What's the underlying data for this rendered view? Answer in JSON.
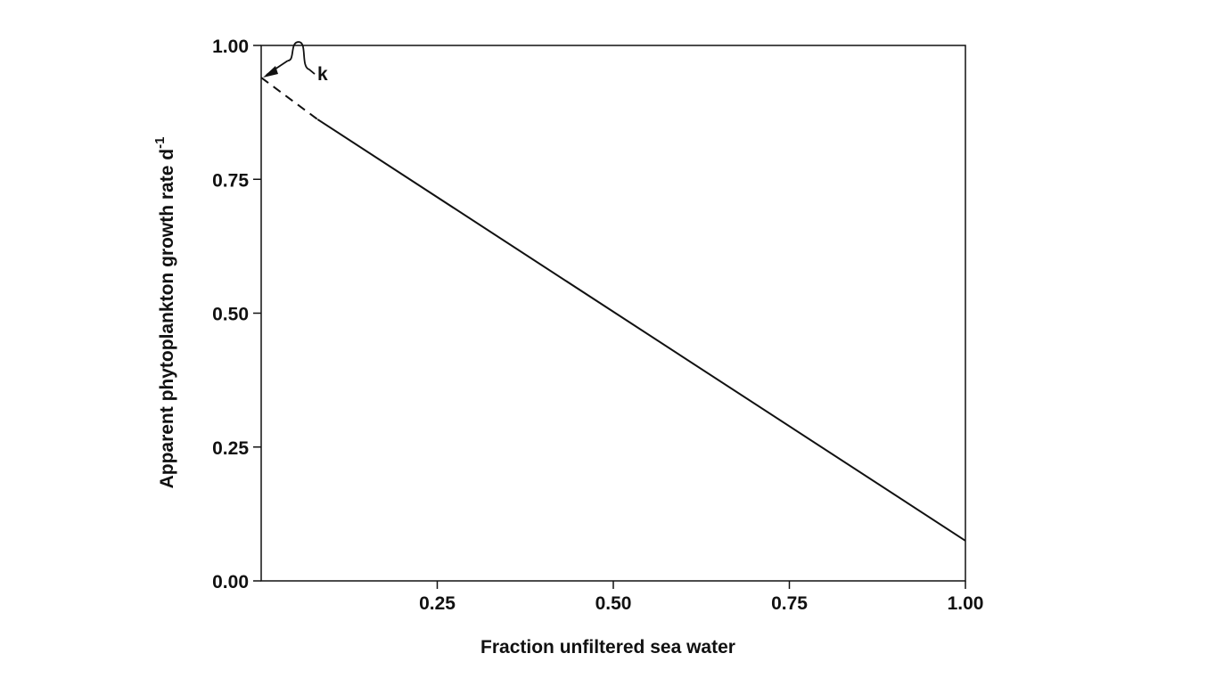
{
  "chart_data": {
    "type": "line",
    "title": "",
    "xlabel": "Fraction unfiltered sea water",
    "ylabel": "Apparent phytoplankton growth rate d",
    "ylabel_superscript": "-1",
    "xlim": [
      0,
      1
    ],
    "ylim": [
      0,
      1
    ],
    "x_ticks": [
      0.25,
      0.5,
      0.75,
      1.0
    ],
    "x_tick_labels": [
      "0.25",
      "0.50",
      "0.75",
      "1.00"
    ],
    "y_ticks": [
      0,
      0.25,
      0.5,
      0.75,
      1.0
    ],
    "y_tick_labels": [
      "0.00",
      "0.25",
      "0.50",
      "0.75",
      "1.00"
    ],
    "grid": false,
    "series": [
      {
        "style": "solid",
        "x": [
          0.08,
          1.0
        ],
        "y": [
          0.862,
          0.075
        ]
      },
      {
        "style": "dashed",
        "x": [
          0.0,
          0.08
        ],
        "y": [
          0.94,
          0.862
        ]
      }
    ],
    "annotations": [
      {
        "text": "k",
        "points_to": {
          "x": 0.0,
          "y": 0.94
        }
      }
    ]
  }
}
